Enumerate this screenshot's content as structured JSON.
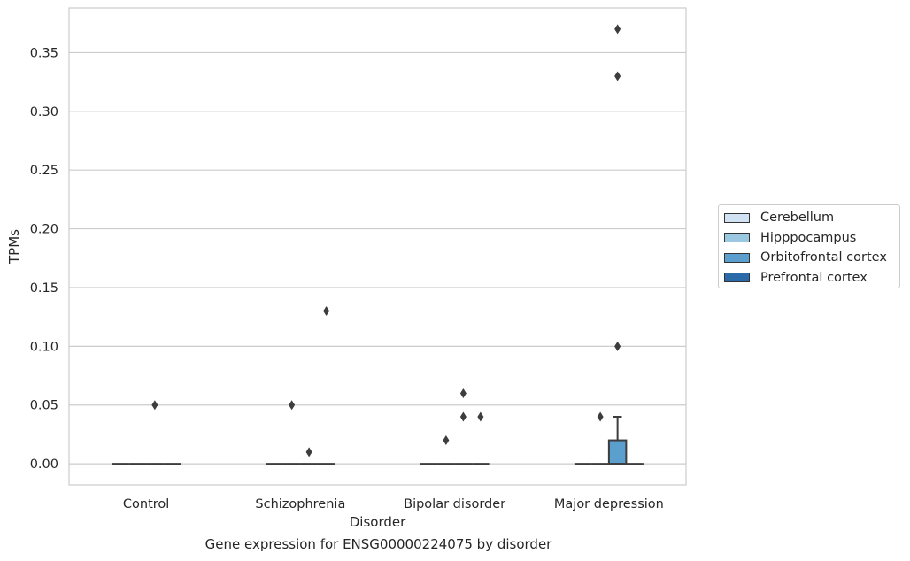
{
  "caption": "Gene expression for ENSG00000224075 by disorder",
  "chart_data": {
    "type": "box",
    "xlabel": "Disorder",
    "ylabel": "TPMs",
    "categories": [
      "Control",
      "Schizophrenia",
      "Bipolar disorder",
      "Major depression"
    ],
    "ylim": [
      -0.018,
      0.388
    ],
    "yticks": [
      0.0,
      0.05,
      0.1,
      0.15,
      0.2,
      0.25,
      0.3,
      0.35
    ],
    "ytick_labels": [
      "0.00",
      "0.05",
      "0.10",
      "0.15",
      "0.20",
      "0.25",
      "0.30",
      "0.35"
    ],
    "grid": "horizontal",
    "legend_position": "right",
    "series": [
      {
        "name": "Cerebellum",
        "color": "#d1e2f2",
        "boxes": [
          {
            "q1": 0,
            "median": 0,
            "q3": 0,
            "whislo": 0,
            "whishi": 0,
            "outliers": []
          },
          {
            "q1": 0,
            "median": 0,
            "q3": 0,
            "whislo": 0,
            "whishi": 0,
            "outliers": []
          },
          {
            "q1": 0,
            "median": 0,
            "q3": 0,
            "whislo": 0,
            "whishi": 0,
            "outliers": []
          },
          {
            "q1": 0,
            "median": 0,
            "q3": 0,
            "whislo": 0,
            "whishi": 0,
            "outliers": []
          }
        ]
      },
      {
        "name": "Hipppocampus",
        "color": "#9ac8e0",
        "boxes": [
          {
            "q1": 0,
            "median": 0,
            "q3": 0,
            "whislo": 0,
            "whishi": 0,
            "outliers": []
          },
          {
            "q1": 0,
            "median": 0,
            "q3": 0,
            "whislo": 0,
            "whishi": 0,
            "outliers": [
              0.05
            ]
          },
          {
            "q1": 0,
            "median": 0,
            "q3": 0,
            "whislo": 0,
            "whishi": 0,
            "outliers": [
              0.02
            ]
          },
          {
            "q1": 0,
            "median": 0,
            "q3": 0,
            "whislo": 0,
            "whishi": 0,
            "outliers": [
              0.04
            ]
          }
        ]
      },
      {
        "name": "Orbitofrontal cortex",
        "color": "#5a9fcd",
        "boxes": [
          {
            "q1": 0,
            "median": 0,
            "q3": 0,
            "whislo": 0,
            "whishi": 0,
            "outliers": [
              0.05
            ]
          },
          {
            "q1": 0,
            "median": 0,
            "q3": 0,
            "whislo": 0,
            "whishi": 0,
            "outliers": [
              0.01
            ]
          },
          {
            "q1": 0,
            "median": 0,
            "q3": 0,
            "whislo": 0,
            "whishi": 0,
            "outliers": [
              0.04,
              0.06
            ]
          },
          {
            "q1": 0,
            "median": 0,
            "q3": 0.02,
            "whislo": 0,
            "whishi": 0.04,
            "outliers": [
              0.1,
              0.33,
              0.37
            ]
          }
        ]
      },
      {
        "name": "Prefrontal cortex",
        "color": "#2a6aa9",
        "boxes": [
          {
            "q1": 0,
            "median": 0,
            "q3": 0,
            "whislo": 0,
            "whishi": 0,
            "outliers": []
          },
          {
            "q1": 0,
            "median": 0,
            "q3": 0,
            "whislo": 0,
            "whishi": 0,
            "outliers": [
              0.13
            ]
          },
          {
            "q1": 0,
            "median": 0,
            "q3": 0,
            "whislo": 0,
            "whishi": 0,
            "outliers": [
              0.04
            ]
          },
          {
            "q1": 0,
            "median": 0,
            "q3": 0,
            "whislo": 0,
            "whishi": 0,
            "outliers": []
          }
        ]
      }
    ]
  }
}
